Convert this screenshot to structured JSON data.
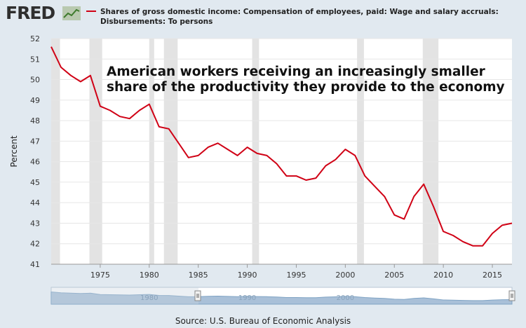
{
  "header": {
    "logo": "FRED",
    "legend_label": "Shares of gross domestic income: Compensation of employees, paid: Wage and salary accruals: Disbursements: To persons"
  },
  "source": "Source: U.S. Bureau of Economic Analysis",
  "navigator_labels": [
    "1980",
    "1990",
    "2000"
  ],
  "colors": {
    "line": "#d00115",
    "recession": "#e3e3e3",
    "background": "#e1e9f0",
    "plot": "#ffffff",
    "navigator": "#7fa3c4"
  },
  "chart_data": {
    "type": "line",
    "title": "",
    "annotation": [
      "American workers receiving an increasingly smaller",
      "share of the productivity they provide to the economy"
    ],
    "xlabel": "",
    "ylabel": "Percent",
    "xlim": [
      1970,
      2017
    ],
    "ylim": [
      41,
      52
    ],
    "yticks": [
      41,
      42,
      43,
      44,
      45,
      46,
      47,
      48,
      49,
      50,
      51,
      52
    ],
    "xticks": [
      1975,
      1980,
      1985,
      1990,
      1995,
      2000,
      2005,
      2010,
      2015
    ],
    "grid": true,
    "recessions": [
      [
        1970,
        1970.9
      ],
      [
        1973.9,
        1975.2
      ],
      [
        1980.0,
        1980.5
      ],
      [
        1981.5,
        1982.9
      ],
      [
        1990.5,
        1991.2
      ],
      [
        2001.2,
        2001.9
      ],
      [
        2007.9,
        2009.5
      ]
    ],
    "series": [
      {
        "name": "Shares of gross domestic income: Compensation of employees, paid: Wage and salary accruals: Disbursements: To persons",
        "x": [
          1970,
          1971,
          1972,
          1973,
          1974,
          1975,
          1976,
          1977,
          1978,
          1979,
          1980,
          1981,
          1982,
          1983,
          1984,
          1985,
          1986,
          1987,
          1988,
          1989,
          1990,
          1991,
          1992,
          1993,
          1994,
          1995,
          1996,
          1997,
          1998,
          1999,
          2000,
          2001,
          2002,
          2003,
          2004,
          2005,
          2006,
          2007,
          2008,
          2009,
          2010,
          2011,
          2012,
          2013,
          2014,
          2015,
          2016,
          2017
        ],
        "values": [
          51.6,
          50.6,
          50.2,
          49.9,
          50.2,
          48.7,
          48.5,
          48.2,
          48.1,
          48.5,
          48.8,
          47.7,
          47.6,
          46.9,
          46.2,
          46.3,
          46.7,
          46.9,
          46.6,
          46.3,
          46.7,
          46.4,
          46.3,
          45.9,
          45.3,
          45.3,
          45.1,
          45.2,
          45.8,
          46.1,
          46.6,
          46.3,
          45.3,
          44.8,
          44.3,
          43.4,
          43.2,
          44.3,
          44.9,
          43.8,
          42.6,
          42.4,
          42.1,
          41.9,
          41.9,
          42.5,
          42.9,
          43.0
        ]
      }
    ]
  }
}
